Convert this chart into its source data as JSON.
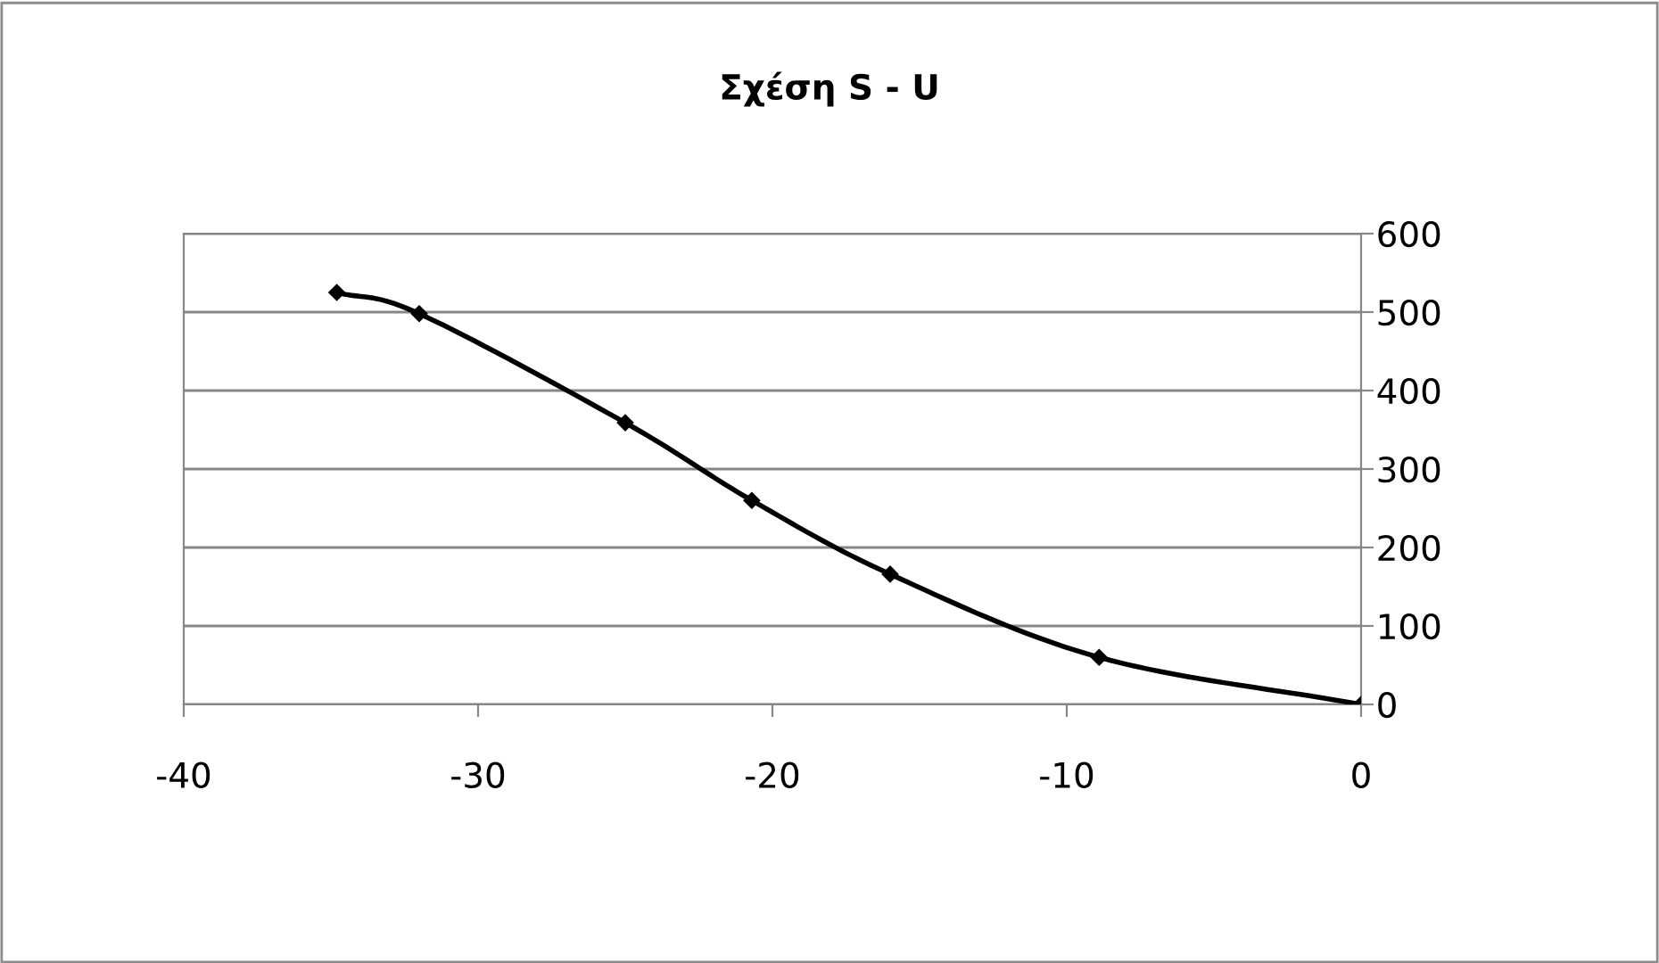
{
  "chart_data": {
    "type": "line",
    "title": "Σχέση S - U",
    "x": [
      -34.8,
      -32.0,
      -25.0,
      -20.7,
      -16.0,
      -8.9,
      0
    ],
    "series": [
      {
        "color": "#000000",
        "values": [
          525,
          498,
          359,
          260,
          166,
          60,
          0
        ]
      }
    ],
    "xlim": [
      -40,
      0
    ],
    "xticks": [
      -40,
      -30,
      -20,
      -10,
      0
    ],
    "ylim": [
      0,
      600
    ],
    "yticks": [
      0,
      100,
      200,
      300,
      400,
      500,
      600
    ],
    "grid": "y",
    "marker": "diamond",
    "line_style": "solid",
    "legend": false
  }
}
